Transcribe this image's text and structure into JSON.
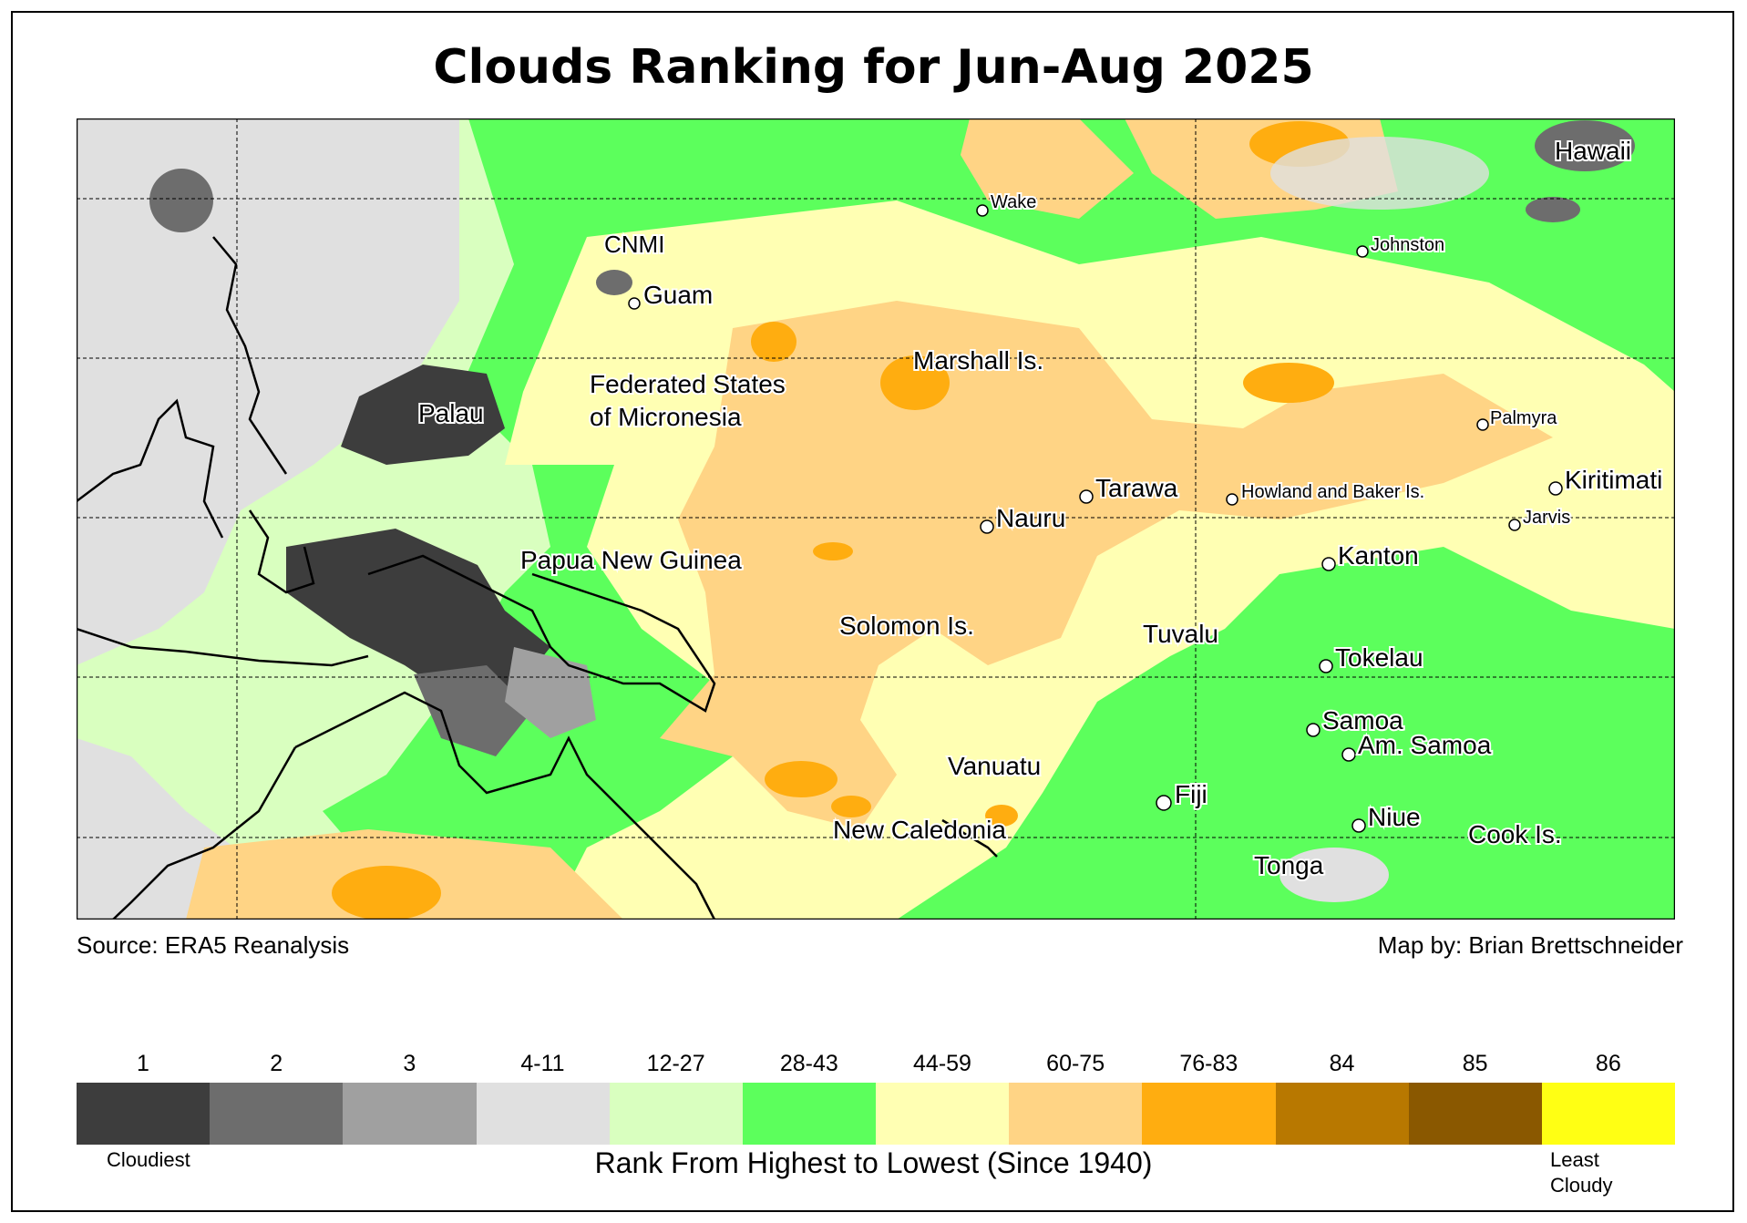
{
  "title": "Clouds Ranking for Jun-Aug 2025",
  "source": "Source: ERA5 Reanalysis",
  "credit": "Map by: Brian Brettschneider",
  "places": {
    "hawaii": "Hawaii",
    "wake": "Wake",
    "johnston": "Johnston",
    "cnmi": "CNMI",
    "guam": "Guam",
    "marshall": "Marshall Is.",
    "fsm1": "Federated States",
    "fsm2": "of Micronesia",
    "palau": "Palau",
    "palmyra": "Palmyra",
    "tarawa": "Tarawa",
    "howland": "Howland and Baker Is.",
    "kiritimati": "Kiritimati",
    "nauru": "Nauru",
    "jarvis": "Jarvis",
    "png": "Papua New Guinea",
    "kanton": "Kanton",
    "solomon": "Solomon Is.",
    "tuvalu": "Tuvalu",
    "tokelau": "Tokelau",
    "samoa": "Samoa",
    "amsamoa": "Am. Samoa",
    "vanuatu": "Vanuatu",
    "fiji": "Fiji",
    "niue": "Niue",
    "cook": "Cook Is.",
    "newcal": "New Caledonia",
    "tonga": "Tonga"
  },
  "legend": {
    "title": "Rank From Highest to Lowest (Since 1940)",
    "low_end": "Cloudiest",
    "high_end_1": "Least",
    "high_end_2": "Cloudy",
    "classes": [
      "1",
      "2",
      "3",
      "4-11",
      "12-27",
      "28-43",
      "44-59",
      "60-75",
      "76-83",
      "84",
      "85",
      "86"
    ],
    "colors": [
      "#3d3d3d",
      "#6d6d6d",
      "#a0a0a0",
      "#e0e0e0",
      "#d9ffbf",
      "#5cff5c",
      "#ffffb3",
      "#ffd485",
      "#ffad10",
      "#b87800",
      "#8a5800",
      "#ffff14"
    ]
  }
}
